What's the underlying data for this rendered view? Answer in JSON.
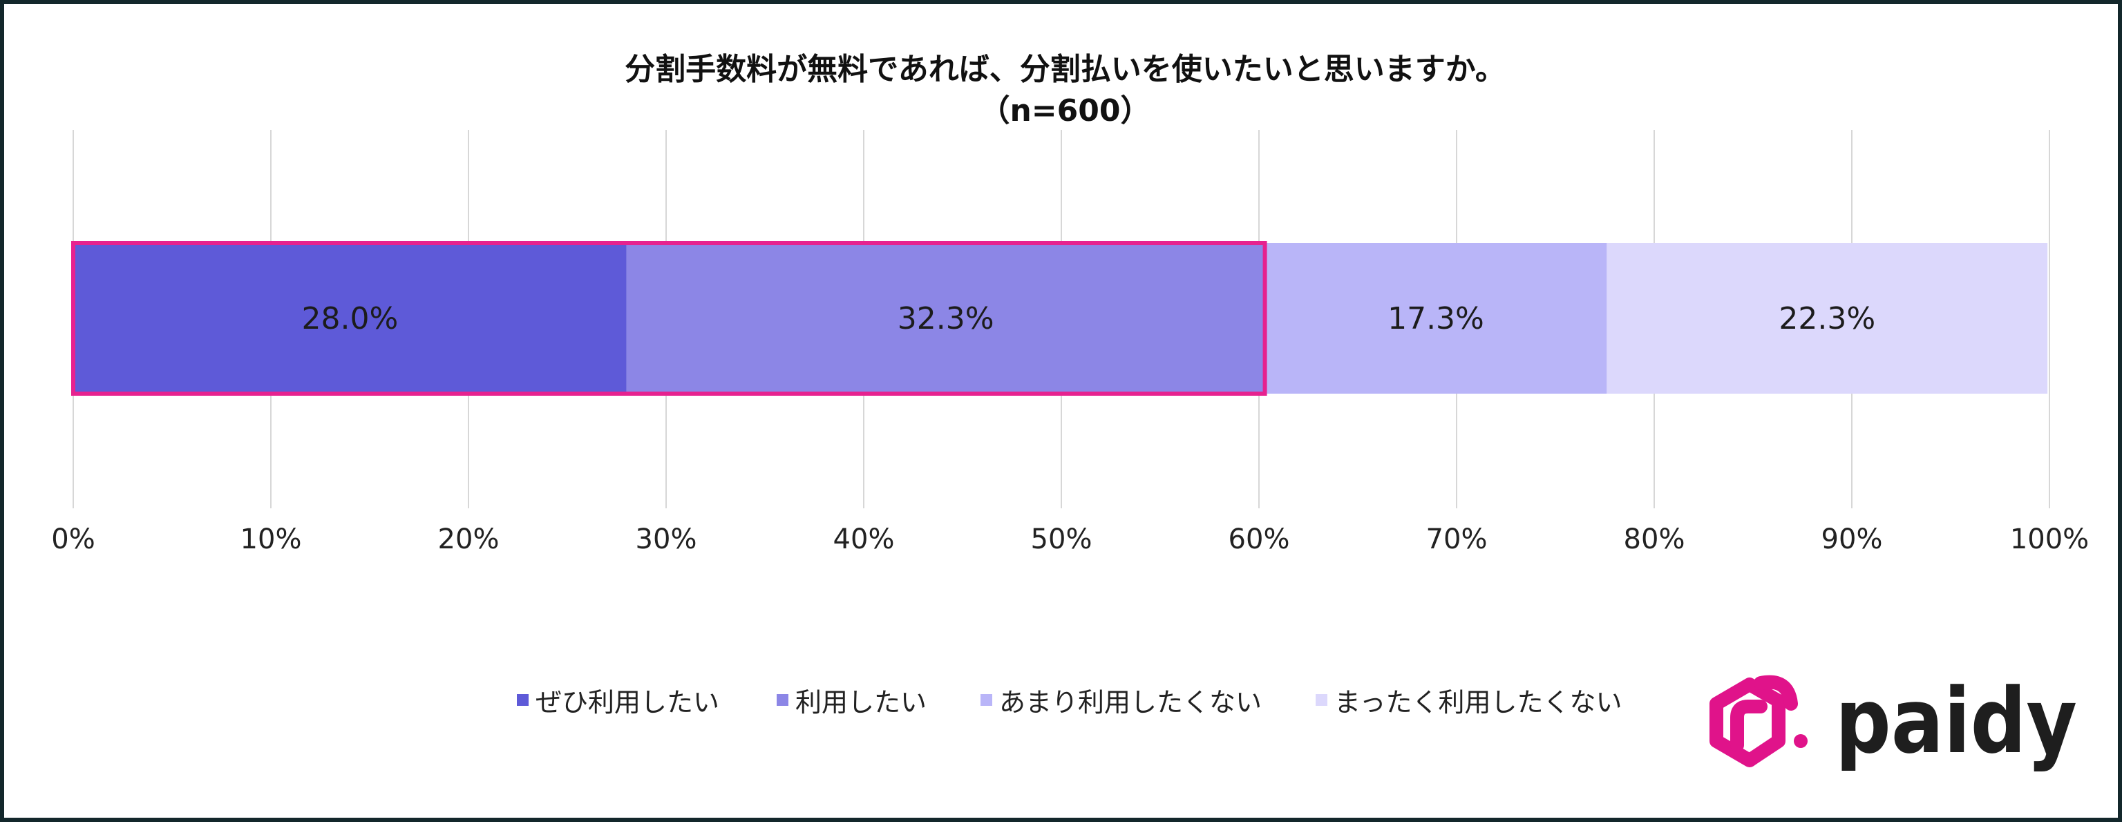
{
  "chart_data": {
    "type": "bar",
    "orientation": "horizontal",
    "stacked": true,
    "title": "分割手数料が無料であれば、分割払いを使いたいと思いますか。",
    "subtitle": "（n=600）",
    "xlim": [
      0,
      100
    ],
    "x_ticks": [
      "0%",
      "10%",
      "20%",
      "30%",
      "40%",
      "50%",
      "60%",
      "70%",
      "80%",
      "90%",
      "100%"
    ],
    "grid": true,
    "legend_position": "bottom",
    "series": [
      {
        "name": "ぜひ利用したい",
        "value": 28.0,
        "label": "28.0%",
        "color": "#5e5ad8"
      },
      {
        "name": "利用したい",
        "value": 32.3,
        "label": "32.3%",
        "color": "#8c86e6"
      },
      {
        "name": "あまり利用したくない",
        "value": 17.3,
        "label": "17.3%",
        "color": "#b9b5f8"
      },
      {
        "name": "まったく利用したくない",
        "value": 22.3,
        "label": "22.3%",
        "color": "#dcd8fc"
      }
    ],
    "highlight": {
      "series": [
        "ぜひ利用したい",
        "利用したい"
      ],
      "color": "#e6228f"
    }
  },
  "logo": {
    "text": "paidy",
    "mark_color": "#e0138a",
    "text_color": "#1e1e1e"
  }
}
